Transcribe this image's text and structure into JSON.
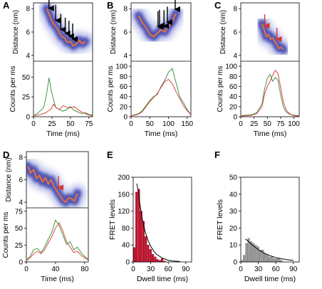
{
  "colors": {
    "distance_blue": "#3a3fae",
    "distance_blue_light": "#9aa2df",
    "fret_orange": "#e8743b",
    "red": "#d8342a",
    "green": "#2e8b3a",
    "hist_red": "#c8102e",
    "hist_gray": "#9a9a9a",
    "fit_line": "#000000"
  },
  "panels": {
    "A": {
      "label": "A"
    },
    "B": {
      "label": "B"
    },
    "C": {
      "label": "C"
    },
    "D": {
      "label": "D"
    },
    "E": {
      "label": "E"
    },
    "F": {
      "label": "F"
    }
  },
  "axis_text": {
    "distance": "Distance (nm)",
    "counts": "Counts per ms",
    "time": "Time (ms)",
    "fret_levels": "FRET levels",
    "dwell_time": "Dwell time (ms)"
  },
  "chart_data": [
    {
      "panel": "A",
      "type": "line",
      "xlabel": "Time (ms)",
      "xlim": [
        0,
        80
      ],
      "x_ticks": [
        0,
        25,
        50,
        75
      ],
      "top": {
        "ylabel": "Distance (nm)",
        "ylim": [
          3.5,
          8.5
        ],
        "y_ticks": [
          4,
          6,
          8
        ],
        "distance_trace": {
          "x": [
            18,
            22,
            26,
            30,
            34,
            38,
            42,
            46,
            50,
            54,
            58,
            62,
            66,
            70
          ],
          "y": [
            8.0,
            7.4,
            6.8,
            6.5,
            6.1,
            5.6,
            5.5,
            5.1,
            5.2,
            4.8,
            5.0,
            5.3,
            5.0,
            5.2
          ]
        },
        "arrows": {
          "color": "black",
          "x": [
            21,
            30,
            37,
            43,
            48,
            53
          ]
        }
      },
      "bottom": {
        "ylabel": "Counts per ms",
        "ylim": [
          0,
          70
        ],
        "y_ticks": [
          0,
          25,
          50
        ],
        "series": [
          {
            "color": "green",
            "x": [
              0,
              5,
              10,
              14,
              18,
              21,
              24,
              27,
              30,
              35,
              40,
              45,
              50,
              55,
              60,
              65,
              70,
              75,
              80
            ],
            "y": [
              2,
              4,
              8,
              12,
              30,
              49,
              33,
              22,
              12,
              9,
              7,
              9,
              13,
              8,
              6,
              4,
              5,
              3,
              2
            ]
          },
          {
            "color": "red",
            "x": [
              0,
              5,
              10,
              14,
              18,
              21,
              24,
              27,
              30,
              35,
              40,
              45,
              50,
              55,
              60,
              65,
              70,
              75,
              80
            ],
            "y": [
              1,
              2,
              3,
              4,
              6,
              8,
              10,
              16,
              12,
              9,
              14,
              12,
              11,
              13,
              9,
              6,
              4,
              2,
              1
            ]
          }
        ]
      }
    },
    {
      "panel": "B",
      "type": "line",
      "xlabel": "Time (ms)",
      "xlim": [
        0,
        160
      ],
      "x_ticks": [
        0,
        50,
        100,
        150
      ],
      "top": {
        "ylabel": "Distance (nm)",
        "ylim": [
          3.5,
          8.5
        ],
        "y_ticks": [
          4,
          6,
          8
        ],
        "distance_trace": {
          "x": [
            20,
            30,
            40,
            50,
            60,
            70,
            80,
            90,
            100,
            110,
            120
          ],
          "y": [
            7.4,
            6.8,
            6.4,
            5.8,
            5.6,
            5.9,
            6.2,
            6.0,
            6.5,
            6.9,
            7.6
          ]
        },
        "arrows": {
          "color": "black",
          "x": [
            72,
            76,
            88,
            97,
            118
          ]
        }
      },
      "bottom": {
        "ylabel": "Counts per ms",
        "ylim": [
          0,
          110
        ],
        "y_ticks": [
          0,
          20,
          40,
          60,
          80,
          100
        ],
        "series": [
          {
            "color": "green",
            "x": [
              0,
              10,
              20,
              30,
              40,
              50,
              60,
              70,
              80,
              90,
              100,
              110,
              120,
              130,
              140,
              150,
              160
            ],
            "y": [
              2,
              4,
              6,
              12,
              22,
              32,
              40,
              44,
              60,
              72,
              88,
              96,
              68,
              40,
              28,
              14,
              4
            ]
          },
          {
            "color": "red",
            "x": [
              0,
              10,
              20,
              30,
              40,
              50,
              60,
              70,
              80,
              90,
              100,
              110,
              120,
              130,
              140,
              150,
              160
            ],
            "y": [
              2,
              3,
              5,
              10,
              20,
              30,
              38,
              46,
              58,
              70,
              74,
              66,
              50,
              36,
              22,
              12,
              4
            ]
          }
        ]
      }
    },
    {
      "panel": "C",
      "type": "line",
      "xlabel": "Time (ms)",
      "xlim": [
        0,
        110
      ],
      "x_ticks": [
        0,
        25,
        50,
        75,
        100
      ],
      "top": {
        "ylabel": "Distance (nm)",
        "ylim": [
          3.5,
          8.5
        ],
        "y_ticks": [
          4,
          6,
          8
        ],
        "distance_trace": {
          "x": [
            40,
            44,
            48,
            52,
            56,
            60,
            64,
            68,
            72,
            76,
            80
          ],
          "y": [
            6.7,
            6.2,
            5.6,
            5.8,
            5.4,
            5.5,
            5.2,
            4.9,
            4.6,
            4.7,
            4.5
          ]
        },
        "arrows": {
          "color": "red",
          "x": [
            45,
            68
          ]
        }
      },
      "bottom": {
        "ylabel": "Counts per ms",
        "ylim": [
          0,
          110
        ],
        "y_ticks": [
          0,
          20,
          40,
          60,
          80,
          100
        ],
        "series": [
          {
            "color": "green",
            "x": [
              0,
              10,
              20,
              30,
              40,
              45,
              50,
              55,
              60,
              65,
              70,
              75,
              80,
              85,
              90,
              95,
              100,
              110
            ],
            "y": [
              2,
              3,
              4,
              8,
              26,
              56,
              76,
              84,
              70,
              78,
              72,
              44,
              20,
              10,
              6,
              4,
              3,
              2
            ]
          },
          {
            "color": "red",
            "x": [
              0,
              10,
              20,
              30,
              40,
              45,
              50,
              55,
              60,
              65,
              70,
              75,
              80,
              85,
              90,
              95,
              100,
              110
            ],
            "y": [
              1,
              2,
              3,
              6,
              20,
              46,
              60,
              70,
              82,
              92,
              86,
              58,
              30,
              14,
              8,
              4,
              2,
              1
            ]
          }
        ]
      }
    },
    {
      "panel": "D",
      "type": "line",
      "xlabel": "Time (ms)",
      "xlim": [
        0,
        85
      ],
      "x_ticks": [
        0,
        40,
        80
      ],
      "top": {
        "ylabel": "Distance (nm)",
        "ylim": [
          3.5,
          8.5
        ],
        "y_ticks": [
          4,
          6,
          8
        ],
        "distance_trace": {
          "x": [
            2,
            6,
            10,
            14,
            18,
            22,
            26,
            30,
            34,
            38,
            42,
            46,
            50,
            54,
            58,
            62,
            66,
            70
          ],
          "y": [
            7.2,
            6.6,
            6.9,
            6.1,
            6.4,
            5.8,
            6.2,
            5.6,
            6.0,
            5.4,
            5.0,
            4.6,
            4.2,
            4.0,
            4.4,
            4.3,
            4.1,
            4.8
          ]
        },
        "arrows": {
          "color": "red",
          "x": [
            44
          ]
        }
      },
      "bottom": {
        "ylabel": "Counts per ms",
        "ylim": [
          0,
          80
        ],
        "y_ticks": [
          0,
          25,
          50,
          75
        ],
        "series": [
          {
            "color": "green",
            "x": [
              0,
              5,
              10,
              15,
              20,
              25,
              30,
              35,
              40,
              45,
              50,
              55,
              60,
              65,
              70,
              75,
              80,
              85
            ],
            "y": [
              3,
              8,
              18,
              20,
              14,
              22,
              34,
              44,
              62,
              54,
              40,
              26,
              30,
              18,
              22,
              14,
              8,
              4
            ]
          },
          {
            "color": "red",
            "x": [
              0,
              5,
              10,
              15,
              20,
              25,
              30,
              35,
              40,
              45,
              50,
              55,
              60,
              65,
              70,
              75,
              80,
              85
            ],
            "y": [
              2,
              6,
              12,
              16,
              12,
              18,
              28,
              38,
              50,
              58,
              46,
              30,
              22,
              14,
              16,
              10,
              6,
              3
            ]
          }
        ]
      }
    },
    {
      "panel": "E",
      "type": "bar",
      "xlabel": "Dwell time (ms)",
      "ylabel": "FRET levels",
      "xlim": [
        0,
        100
      ],
      "ylim": [
        0,
        200
      ],
      "x_ticks": [
        0,
        30,
        60,
        90
      ],
      "y_ticks": [
        0,
        40,
        80,
        120,
        160,
        200
      ],
      "bin_width": 4,
      "bins_start": [
        0,
        4,
        8,
        12,
        16,
        20,
        24,
        28,
        32,
        36,
        40,
        44,
        48,
        52
      ],
      "values": [
        34,
        165,
        172,
        120,
        96,
        60,
        40,
        30,
        18,
        12,
        6,
        4,
        8,
        2
      ],
      "fit": {
        "x": [
          6,
          8,
          10,
          15,
          20,
          25,
          30,
          35,
          40,
          50,
          60,
          70,
          80
        ],
        "y": [
          185,
          172,
          150,
          105,
          74,
          52,
          37,
          26,
          18,
          9,
          4,
          2,
          1
        ]
      }
    },
    {
      "panel": "F",
      "type": "bar",
      "xlabel": "Dwell time (ms)",
      "ylabel": "FRET levels",
      "xlim": [
        0,
        100
      ],
      "ylim": [
        0,
        50
      ],
      "x_ticks": [
        0,
        30,
        60,
        90
      ],
      "y_ticks": [
        0,
        10,
        20,
        30,
        40,
        50
      ],
      "bin_width": 4,
      "bins_start": [
        0,
        4,
        8,
        12,
        16,
        20,
        24,
        28,
        32,
        36,
        40,
        44,
        48,
        52,
        56,
        60,
        64,
        68
      ],
      "values": [
        1,
        4,
        11,
        14,
        12,
        11,
        10,
        9,
        7,
        7,
        5,
        4,
        3,
        3,
        2,
        2,
        2,
        1
      ],
      "fit": {
        "x": [
          8,
          10,
          15,
          20,
          25,
          30,
          40,
          50,
          60,
          70,
          80,
          90
        ],
        "y": [
          13.5,
          13,
          11.5,
          10,
          8.5,
          7.3,
          5.2,
          3.7,
          2.6,
          1.9,
          1.3,
          0.9
        ]
      }
    }
  ]
}
